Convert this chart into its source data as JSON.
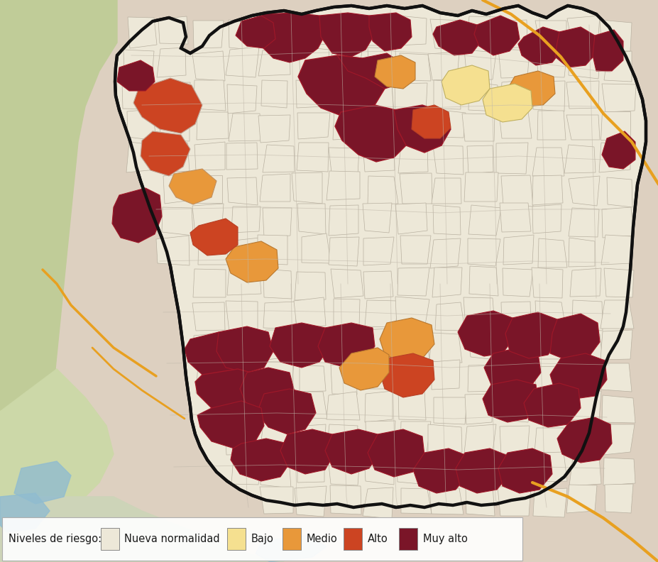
{
  "legend_title": "Niveles de riesgo:",
  "legend_items": [
    {
      "label": "Nueva normalidad",
      "color": "#ede8d8"
    },
    {
      "label": "Bajo",
      "color": "#f5e090"
    },
    {
      "label": "Medio",
      "color": "#e8983a"
    },
    {
      "label": "Alto",
      "color": "#cc4422"
    },
    {
      "label": "Muy alto",
      "color": "#7a1528"
    }
  ],
  "bg_outside": "#ddd0c0",
  "bg_left_green": "#c8d4b0",
  "bg_bottom_green": "#d4ddc0",
  "bg_water": "#a8c8d8",
  "road_color": "#e8a020",
  "inner_border_color": "#c8bfb0",
  "province_fill": "#ede8d8",
  "province_border": "#111111",
  "figsize": [
    9.28,
    7.92
  ],
  "dpi": 100,
  "legend_fontsize": 10.5
}
